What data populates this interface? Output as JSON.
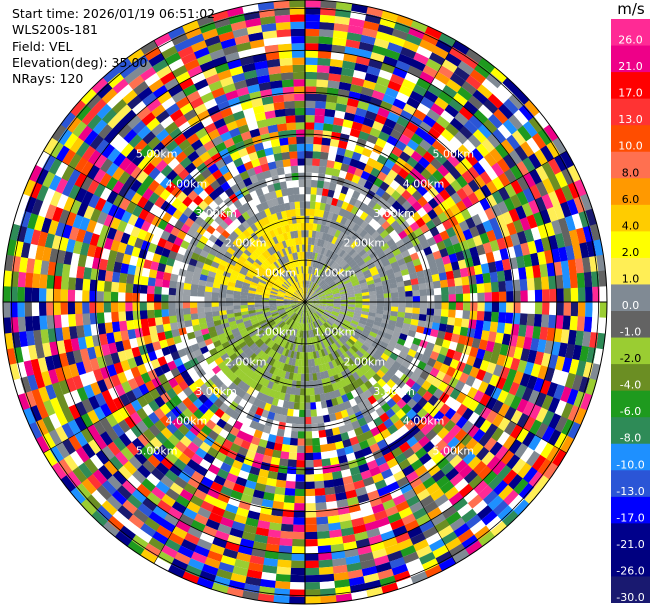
{
  "header": {
    "start_time": "Start time: 2026/01/19 06:51:02",
    "instrument": "WLS200s-181",
    "field": "Field: VEL",
    "elevation": "Elevation(deg): 35.00",
    "nrays": "NRays: 120"
  },
  "colorbar": {
    "unit": "m/s",
    "entries": [
      {
        "label": "26.0",
        "color": "#ff2a95"
      },
      {
        "label": "21.0",
        "color": "#ee0088"
      },
      {
        "label": "17.0",
        "color": "#ff0000"
      },
      {
        "label": "13.0",
        "color": "#ff3333"
      },
      {
        "label": "10.0",
        "color": "#ff4d00"
      },
      {
        "label": "8.0",
        "color": "#ff7050"
      },
      {
        "label": "6.0",
        "color": "#ff9900"
      },
      {
        "label": "4.0",
        "color": "#ffcc00"
      },
      {
        "label": "2.0",
        "color": "#ffff00"
      },
      {
        "label": "1.0",
        "color": "#ffee55"
      },
      {
        "label": "0.0",
        "color": "#808a94"
      },
      {
        "label": "-1.0",
        "color": "#636363"
      },
      {
        "label": "-2.0",
        "color": "#9acd32"
      },
      {
        "label": "-4.0",
        "color": "#6b8e23"
      },
      {
        "label": "-6.0",
        "color": "#1e9a1e"
      },
      {
        "label": "-8.0",
        "color": "#2e8b57"
      },
      {
        "label": "-10.0",
        "color": "#1e90ff"
      },
      {
        "label": "-13.0",
        "color": "#2b55d6"
      },
      {
        "label": "-17.0",
        "color": "#0000ff"
      },
      {
        "label": "-21.0",
        "color": "#00008b"
      },
      {
        "label": "-26.0",
        "color": "#000080"
      },
      {
        "label": "-30.0",
        "color": "#191970"
      }
    ]
  },
  "chart_data": {
    "type": "heatmap",
    "projection": "polar-ppi",
    "field": "VEL",
    "units": "m/s",
    "elevation_deg": 35.0,
    "nrays": 120,
    "rings": [
      {
        "label": "1.00km",
        "value_km": 1
      },
      {
        "label": "2.00km",
        "value_km": 2
      },
      {
        "label": "3.00km",
        "value_km": 3
      },
      {
        "label": "4.00km",
        "value_km": 4
      },
      {
        "label": "5.00km",
        "value_km": 5
      }
    ],
    "max_range_km": 7.2,
    "gate_count": 42,
    "grid": true,
    "notes": "Near-field (< ~1.6 km) shows coherent low velocities: gray (~0 m/s) majority, yellow (+1..+4 m/s) patch to the north-west, green (-2..-4 m/s) region to the south; beyond ~2 km the velocity field is noise spanning the full -30..26 m/s color range."
  }
}
